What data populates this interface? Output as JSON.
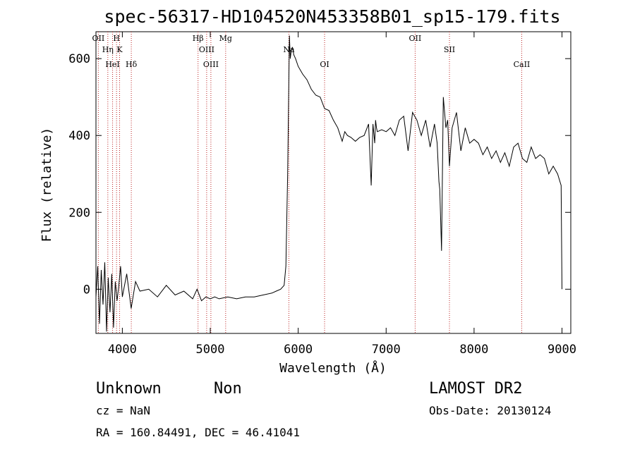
{
  "chart_data": {
    "type": "line",
    "title": "spec-56317-HD104520N453358B01_sp15-179.fits",
    "xlabel": "Wavelength (Å)",
    "ylabel": "Flux (relative)",
    "xlim": [
      3700,
      9100
    ],
    "ylim": [
      -115,
      670
    ],
    "xticks": [
      4000,
      5000,
      6000,
      7000,
      8000,
      9000
    ],
    "yticks": [
      0,
      200,
      400,
      600
    ],
    "grid": false,
    "series": [
      {
        "x": [
          3700,
          3720,
          3740,
          3760,
          3780,
          3800,
          3820,
          3840,
          3860,
          3880,
          3900,
          3920,
          3940,
          3960,
          3980,
          4000,
          4050,
          4100,
          4150,
          4200,
          4300,
          4400,
          4500,
          4600,
          4700,
          4800,
          4850,
          4900,
          4950,
          5000,
          5050,
          5100,
          5200,
          5300,
          5400,
          5500,
          5600,
          5700,
          5750,
          5800,
          5840,
          5860,
          5880,
          5900,
          5910,
          5920,
          5935,
          5950,
          5970,
          6000,
          6050,
          6100,
          6150,
          6200,
          6250,
          6300,
          6350,
          6400,
          6450,
          6500,
          6530,
          6560,
          6600,
          6650,
          6700,
          6750,
          6800,
          6830,
          6850,
          6870,
          6880,
          6890,
          6900,
          6950,
          7000,
          7050,
          7100,
          7150,
          7200,
          7250,
          7300,
          7350,
          7400,
          7450,
          7500,
          7550,
          7580,
          7600,
          7610,
          7630,
          7650,
          7680,
          7700,
          7720,
          7750,
          7800,
          7850,
          7900,
          7950,
          8000,
          8050,
          8100,
          8150,
          8200,
          8250,
          8300,
          8350,
          8400,
          8450,
          8500,
          8550,
          8600,
          8650,
          8700,
          8750,
          8800,
          8850,
          8900,
          8950,
          8990,
          9000
        ],
        "y": [
          -20,
          60,
          -90,
          50,
          -40,
          70,
          -110,
          30,
          -60,
          40,
          -100,
          20,
          -30,
          10,
          60,
          -20,
          40,
          -50,
          20,
          -5,
          0,
          -20,
          10,
          -15,
          -5,
          -25,
          0,
          -30,
          -20,
          -25,
          -20,
          -25,
          -20,
          -25,
          -20,
          -20,
          -15,
          -10,
          -5,
          0,
          10,
          60,
          300,
          660,
          600,
          620,
          630,
          610,
          600,
          580,
          560,
          545,
          520,
          505,
          500,
          470,
          465,
          440,
          420,
          385,
          410,
          400,
          395,
          385,
          395,
          400,
          430,
          270,
          430,
          380,
          440,
          420,
          410,
          415,
          410,
          420,
          400,
          440,
          450,
          360,
          460,
          440,
          400,
          440,
          370,
          430,
          380,
          280,
          260,
          100,
          500,
          420,
          440,
          320,
          420,
          460,
          360,
          420,
          380,
          390,
          380,
          350,
          370,
          340,
          360,
          330,
          355,
          320,
          370,
          380,
          340,
          330,
          370,
          340,
          350,
          340,
          300,
          320,
          300,
          270,
          0
        ]
      }
    ],
    "lines": [
      {
        "label": "OII",
        "x": 3727
      },
      {
        "label": "Hη",
        "x": 3835
      },
      {
        "label": "HeI",
        "x": 3889
      },
      {
        "label": "H",
        "x": 3934
      },
      {
        "label": "K",
        "x": 3969
      },
      {
        "label": "Hδ",
        "x": 4102
      },
      {
        "label": "Hβ",
        "x": 4861
      },
      {
        "label": "OIII",
        "x": 4959
      },
      {
        "label": "OIII",
        "x": 5007
      },
      {
        "label": "Mg",
        "x": 5175
      },
      {
        "label": "Na",
        "x": 5894
      },
      {
        "label": "OI",
        "x": 6300
      },
      {
        "label": "OII",
        "x": 7330
      },
      {
        "label": "SII",
        "x": 7720
      },
      {
        "label": "CaII",
        "x": 8542
      }
    ]
  },
  "info": {
    "object_class": "Unknown",
    "subclass": "Non",
    "survey": "LAMOST DR2",
    "cz": "cz = NaN",
    "obs_date": "Obs-Date: 20130124",
    "coords": "RA = 160.84491, DEC =  46.41041"
  }
}
